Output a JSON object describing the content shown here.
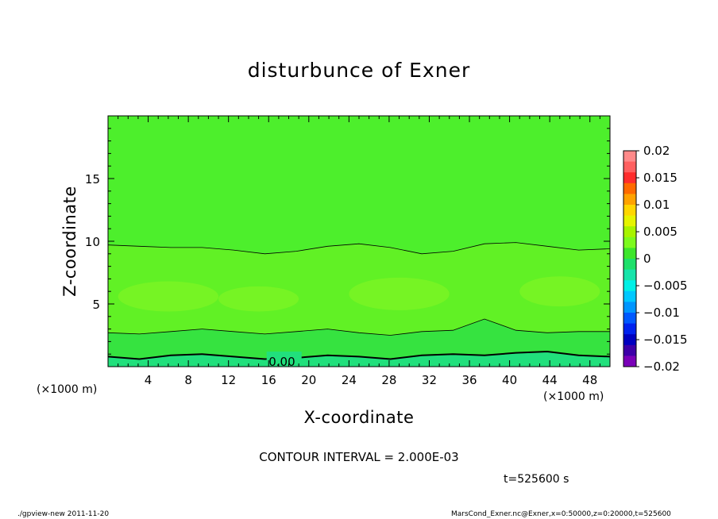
{
  "chart_data": {
    "type": "contour",
    "title": "disturbunce of Exner",
    "xlabel": "X-coordinate",
    "ylabel": "Z-coordinate",
    "x_unit_label": "(×1000 m)",
    "y_unit_label": "(×1000 m)",
    "xlim": [
      0,
      50
    ],
    "ylim": [
      0,
      20
    ],
    "x_ticks": [
      4,
      8,
      12,
      16,
      20,
      24,
      28,
      32,
      36,
      40,
      44,
      48
    ],
    "y_ticks": [
      5,
      10,
      15
    ],
    "contour_interval_text": "CONTOUR INTERVAL = 2.000E-03",
    "contour_label": "0.00",
    "time_text": "t=525600 s",
    "colorbar": {
      "ticks": [
        "0.02",
        "0.015",
        "0.01",
        "0.005",
        "0",
        "−0.005",
        "−0.01",
        "−0.015",
        "−0.02"
      ],
      "levels": [
        0.02,
        0.015,
        0.01,
        0.005,
        0,
        -0.005,
        -0.01,
        -0.015,
        -0.02
      ],
      "colors": [
        "#ff8a8a",
        "#ff6060",
        "#ff2d2d",
        "#ff6a00",
        "#ffa200",
        "#ffd600",
        "#e6f400",
        "#a8f400",
        "#7dfa1e",
        "#3de62b",
        "#1ee06a",
        "#17e4aa",
        "#00f0e6",
        "#00c8ff",
        "#0096ff",
        "#0059ff",
        "#0022ee",
        "#0000c0",
        "#3d00a8",
        "#7a00b8"
      ]
    },
    "fields": {
      "upper_color": "#4def2c",
      "middle_color": "#61f125",
      "bright_blob_color": "#7af524",
      "low_color": "#36e340",
      "bottom_color": "#21e07c"
    },
    "contour_lines": [
      {
        "z": [
          9.7,
          9.6,
          9.5,
          9.5,
          9.3,
          9.0,
          9.2,
          9.6,
          9.8,
          9.5,
          9.0,
          9.2,
          9.8,
          9.9,
          9.6,
          9.3,
          9.4
        ]
      },
      {
        "z": [
          2.7,
          2.6,
          2.8,
          3.0,
          2.8,
          2.6,
          2.8,
          3.0,
          2.7,
          2.5,
          2.8,
          2.9,
          3.8,
          2.9,
          2.7,
          2.8,
          2.8
        ]
      },
      {
        "z": [
          0.8,
          0.6,
          0.9,
          1.0,
          0.8,
          0.6,
          0.7,
          0.9,
          0.8,
          0.6,
          0.9,
          1.0,
          0.9,
          1.1,
          1.2,
          0.9,
          0.8
        ]
      }
    ]
  },
  "footer": {
    "left": "./gpview-new   2011-11-20",
    "right": "MarsCond_Exner.nc@Exner,x=0:50000,z=0:20000,t=525600"
  }
}
